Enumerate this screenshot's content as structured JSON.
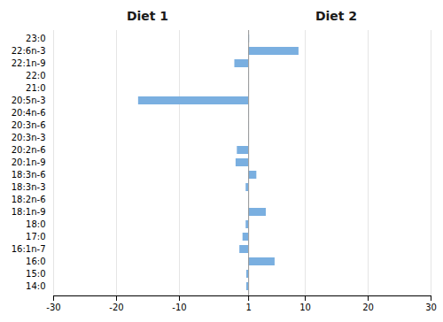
{
  "chart_data": {
    "type": "bar",
    "orientation": "horizontal",
    "annotations": [
      "Diet 1",
      "Diet 2"
    ],
    "categories": [
      "23:0",
      "22:6n-3",
      "22:1n-9",
      "22:0",
      "21:0",
      "20:5n-3",
      "20:4n-6",
      "20:3n-6",
      "20:3n-3",
      "20:2n-6",
      "20:1n-9",
      "18:3n-6",
      "18:3n-3",
      "18:2n-6",
      "18:1n-9",
      "18:0",
      "17:0",
      "16:1n-7",
      "16:0",
      "15:0",
      "14:0"
    ],
    "values": [
      1.15,
      9.0,
      -1.2,
      1.05,
      1.05,
      -16.5,
      1.05,
      1.05,
      1.05,
      -0.8,
      -1.0,
      2.3,
      0.6,
      1.05,
      3.8,
      0.6,
      0.1,
      -0.4,
      5.2,
      0.7,
      0.7
    ],
    "base": 1,
    "color": "#7aafe0",
    "xlim": [
      -30,
      30
    ],
    "xticks": [
      -30,
      -20,
      -10,
      1,
      10,
      20,
      30
    ],
    "grid": true
  }
}
